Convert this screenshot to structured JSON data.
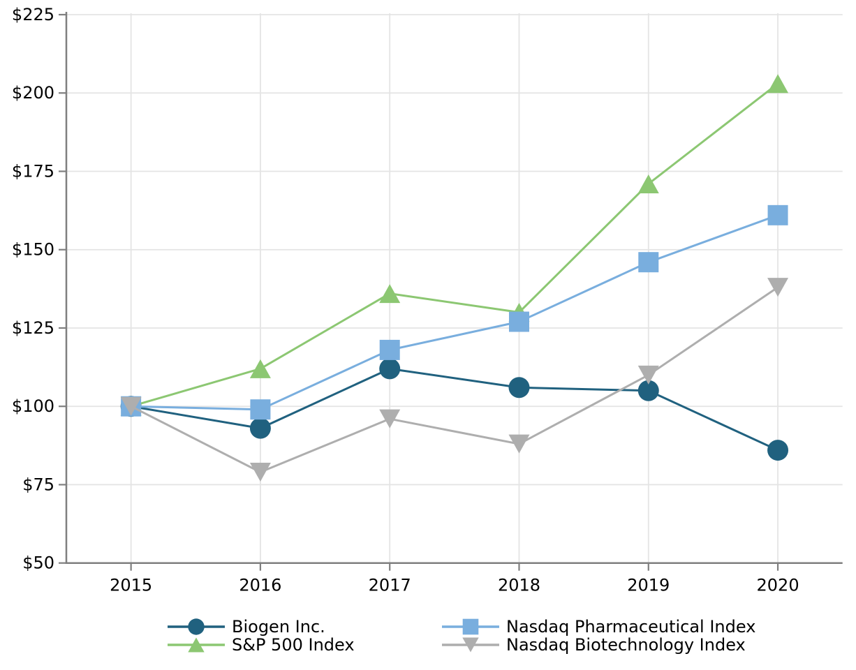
{
  "chart_data": {
    "type": "line",
    "x": [
      2015,
      2016,
      2017,
      2018,
      2019,
      2020
    ],
    "series": [
      {
        "name": "Biogen Inc.",
        "marker": "circle",
        "color": "#20617f",
        "values": [
          100,
          93,
          112,
          106,
          105,
          86
        ]
      },
      {
        "name": "S&P 500 Index",
        "marker": "triangle-up",
        "color": "#8cc772",
        "values": [
          100,
          112,
          136,
          130,
          171,
          203
        ]
      },
      {
        "name": "Nasdaq Pharmaceutical Index",
        "marker": "square",
        "color": "#79aede",
        "values": [
          100,
          99,
          118,
          127,
          146,
          161
        ]
      },
      {
        "name": "Nasdaq Biotechnology Index",
        "marker": "triangle-down",
        "color": "#aeaeae",
        "values": [
          100,
          79,
          96,
          88,
          110,
          138
        ]
      }
    ],
    "xticks": [
      2015,
      2016,
      2017,
      2018,
      2019,
      2020
    ],
    "yticks": [
      50,
      75,
      100,
      125,
      150,
      175,
      200,
      225
    ],
    "xlim": [
      2014.5,
      2020.5
    ],
    "ylim": [
      50,
      225
    ],
    "ytick_prefix": "$",
    "grid": true,
    "legend_position": "bottom-center"
  },
  "styles": {
    "background": "#ffffff",
    "grid_color": "#e4e4e4",
    "spine_color": "#7f7f7f",
    "tick_label_color": "#000000"
  }
}
